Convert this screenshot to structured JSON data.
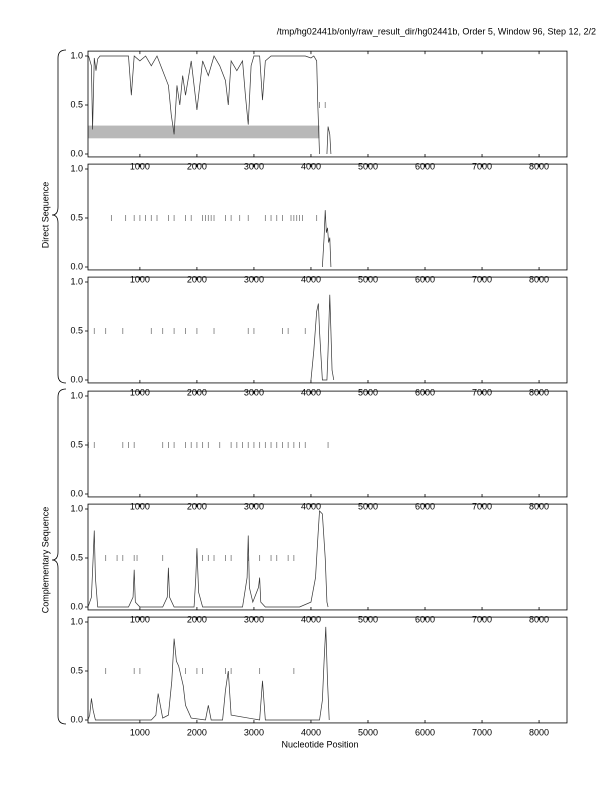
{
  "title": "/tmp/hg02441b/only/raw_result_dir/hg02441b, Order 5, Window 96, Step 12, 2/2",
  "xlabel": "Nucleotide Position",
  "group_labels": [
    "Direct Sequence",
    "Complementary Sequence"
  ],
  "chart_data": [
    {
      "type": "line",
      "xlim": [
        90,
        8490
      ],
      "ylim": [
        -0.03,
        1.05
      ],
      "xticks": [
        1000,
        2000,
        3000,
        4000,
        5000,
        6000,
        7000,
        8000
      ],
      "yticks": [
        {
          "value": 0,
          "label": "0.0"
        },
        {
          "value": 0.5,
          "label": "0.5"
        },
        {
          "value": 1,
          "label": "1.0"
        }
      ],
      "band": {
        "x": [
          90,
          4150
        ],
        "y": [
          0.16,
          0.29
        ],
        "color": "#b8b8b8"
      },
      "series": [
        {
          "color": "#333333",
          "x": [
            100,
            150,
            170,
            200,
            230,
            260,
            300,
            500,
            800,
            850,
            900,
            1000,
            1100,
            1200,
            1300,
            1400,
            1500,
            1550,
            1600,
            1650,
            1700,
            1750,
            1800,
            1900,
            2000,
            2100,
            2200,
            2300,
            2400,
            2500,
            2550,
            2600,
            2700,
            2800,
            2850,
            2900,
            2950,
            3000,
            3100,
            3150,
            3200,
            3300,
            3500,
            3700,
            3900,
            4000,
            4050,
            4100,
            4120,
            4150,
            4200,
            4250,
            4280,
            4300,
            4330,
            4350
          ],
          "values": [
            1.0,
            0.9,
            0.25,
            0.98,
            0.85,
            0.97,
            1,
            1,
            1,
            0.6,
            1,
            0.95,
            1,
            0.9,
            1,
            0.85,
            0.7,
            0.4,
            0.2,
            0.7,
            0.5,
            0.8,
            0.6,
            0.95,
            0.45,
            0.95,
            0.8,
            1,
            0.9,
            0.75,
            0.5,
            0.95,
            0.85,
            0.95,
            0.6,
            0.3,
            0.9,
            1,
            1,
            0.55,
            0.95,
            1,
            1,
            1,
            1,
            0.98,
            1,
            0.95,
            0.5,
            0,
            null,
            null,
            0,
            0.28,
            0.2,
            0
          ]
        },
        {
          "marker": "tick",
          "color": "#777777",
          "x": [
            4150,
            4250
          ],
          "values": [
            0.5,
            0.5
          ]
        }
      ]
    },
    {
      "type": "line",
      "xlim": [
        90,
        8490
      ],
      "ylim": [
        -0.03,
        1.05
      ],
      "xticks": [
        1000,
        2000,
        3000,
        4000,
        5000,
        6000,
        7000,
        8000
      ],
      "yticks": [
        {
          "value": 0,
          "label": "0.0"
        },
        {
          "value": 0.5,
          "label": "0.5"
        },
        {
          "value": 1,
          "label": "1.0"
        }
      ],
      "series": [
        {
          "color": "#333333",
          "x": [
            4200,
            4230,
            4250,
            4270,
            4290,
            4310,
            4330,
            4350
          ],
          "values": [
            0,
            0.3,
            0.58,
            0.35,
            0.4,
            0.25,
            0.3,
            0
          ]
        },
        {
          "marker": "tick",
          "color": "#777777",
          "x": [
            500,
            750,
            900,
            1000,
            1100,
            1200,
            1300,
            1500,
            1600,
            1800,
            1900,
            2100,
            2150,
            2200,
            2250,
            2300,
            2500,
            2600,
            2750,
            2900,
            3200,
            3300,
            3400,
            3500,
            3650,
            3700,
            3750,
            3800,
            3850,
            4100
          ],
          "values": [
            0.5,
            0.5,
            0.5,
            0.5,
            0.5,
            0.5,
            0.5,
            0.5,
            0.5,
            0.5,
            0.5,
            0.5,
            0.5,
            0.5,
            0.5,
            0.5,
            0.5,
            0.5,
            0.5,
            0.5,
            0.5,
            0.5,
            0.5,
            0.5,
            0.5,
            0.5,
            0.5,
            0.5,
            0.5,
            0.5
          ]
        }
      ]
    },
    {
      "type": "line",
      "xlim": [
        90,
        8490
      ],
      "ylim": [
        -0.03,
        1.05
      ],
      "xticks": [
        1000,
        2000,
        3000,
        4000,
        5000,
        6000,
        7000,
        8000
      ],
      "yticks": [
        {
          "value": 0,
          "label": "0.0"
        },
        {
          "value": 0.5,
          "label": "0.5"
        },
        {
          "value": 1,
          "label": "1.0"
        }
      ],
      "series": [
        {
          "color": "#333333",
          "x": [
            4000,
            4050,
            4100,
            4130,
            4150,
            4180,
            4200,
            4280,
            4300,
            4330,
            4350,
            4370,
            4400
          ],
          "values": [
            0,
            0.3,
            0.7,
            0.78,
            0.5,
            0.2,
            0,
            0,
            0.3,
            0.87,
            0.5,
            0.1,
            0
          ]
        },
        {
          "marker": "tick",
          "color": "#777777",
          "x": [
            200,
            400,
            700,
            1200,
            1400,
            1600,
            1800,
            2000,
            2300,
            2900,
            3000,
            3500,
            3600,
            3900
          ],
          "values": [
            0.5,
            0.5,
            0.5,
            0.5,
            0.5,
            0.5,
            0.5,
            0.5,
            0.5,
            0.5,
            0.5,
            0.5,
            0.5,
            0.5
          ]
        }
      ]
    },
    {
      "type": "line",
      "xlim": [
        90,
        8490
      ],
      "ylim": [
        -0.03,
        1.05
      ],
      "xticks": [
        1000,
        2000,
        3000,
        4000,
        5000,
        6000,
        7000,
        8000
      ],
      "yticks": [
        {
          "value": 0,
          "label": "0.0"
        },
        {
          "value": 0.5,
          "label": "0.5"
        },
        {
          "value": 1,
          "label": "1.0"
        }
      ],
      "series": [
        {
          "marker": "tick",
          "color": "#777777",
          "x": [
            100,
            200,
            700,
            800,
            900,
            1400,
            1500,
            1600,
            1800,
            1900,
            2000,
            2100,
            2200,
            2400,
            2600,
            2700,
            2800,
            2900,
            3000,
            3100,
            3200,
            3300,
            3400,
            3500,
            3600,
            3700,
            3800,
            3900,
            4300
          ],
          "values": [
            0.5,
            0.5,
            0.5,
            0.5,
            0.5,
            0.5,
            0.5,
            0.5,
            0.5,
            0.5,
            0.5,
            0.5,
            0.5,
            0.5,
            0.5,
            0.5,
            0.5,
            0.5,
            0.5,
            0.5,
            0.5,
            0.5,
            0.5,
            0.5,
            0.5,
            0.5,
            0.5,
            0.5,
            0.5
          ]
        }
      ]
    },
    {
      "type": "line",
      "xlim": [
        90,
        8490
      ],
      "ylim": [
        -0.03,
        1.05
      ],
      "xticks": [
        1000,
        2000,
        3000,
        4000,
        5000,
        6000,
        7000,
        8000
      ],
      "yticks": [
        {
          "value": 0,
          "label": "0.0"
        },
        {
          "value": 0.5,
          "label": "0.5"
        },
        {
          "value": 1,
          "label": "1.0"
        }
      ],
      "series": [
        {
          "color": "#333333",
          "x": [
            90,
            150,
            180,
            200,
            220,
            260,
            400,
            800,
            880,
            900,
            920,
            1000,
            1400,
            1480,
            1500,
            1520,
            1600,
            1950,
            1980,
            2000,
            2030,
            2100,
            2800,
            2880,
            2900,
            2920,
            2980,
            3080,
            3100,
            3120,
            3200,
            3800,
            4000,
            4080,
            4120,
            4150,
            4200,
            4250,
            4280,
            4300
          ],
          "values": [
            0,
            0.1,
            0.5,
            0.78,
            0.3,
            0,
            0,
            0,
            0.1,
            0.38,
            0.05,
            0,
            0,
            0.1,
            0.4,
            0.1,
            0,
            0,
            0.3,
            0.6,
            0.15,
            0,
            0,
            0.3,
            0.73,
            0.2,
            0.05,
            0.2,
            0.3,
            0.05,
            0,
            0,
            0.05,
            0.3,
            0.7,
            0.98,
            0.95,
            0.5,
            0.05,
            0
          ]
        },
        {
          "marker": "tick",
          "color": "#777777",
          "x": [
            400,
            600,
            700,
            900,
            950,
            1400,
            2100,
            2200,
            2300,
            2500,
            2600,
            2900,
            3100,
            3300,
            3400,
            3600,
            3700
          ],
          "values": [
            0.5,
            0.5,
            0.5,
            0.5,
            0.5,
            0.5,
            0.5,
            0.5,
            0.5,
            0.5,
            0.5,
            0.5,
            0.5,
            0.5,
            0.5,
            0.5,
            0.5
          ]
        }
      ]
    },
    {
      "type": "line",
      "xlim": [
        90,
        8490
      ],
      "ylim": [
        -0.03,
        1.05
      ],
      "xticks": [
        1000,
        2000,
        3000,
        4000,
        5000,
        6000,
        7000,
        8000
      ],
      "yticks": [
        {
          "value": 0,
          "label": "0.0"
        },
        {
          "value": 0.5,
          "label": "0.5"
        },
        {
          "value": 1,
          "label": "1.0"
        }
      ],
      "series": [
        {
          "color": "#333333",
          "x": [
            90,
            120,
            150,
            180,
            220,
            1200,
            1280,
            1320,
            1400,
            1500,
            1560,
            1600,
            1640,
            1680,
            1720,
            1760,
            1800,
            1900,
            2150,
            2200,
            2250,
            2450,
            2500,
            2550,
            2600,
            3100,
            3150,
            3200,
            4150,
            4200,
            4230,
            4260,
            4290,
            4320
          ],
          "values": [
            0,
            0.05,
            0.22,
            0.1,
            0,
            0,
            0.05,
            0.27,
            0.02,
            0.05,
            0.4,
            0.83,
            0.6,
            0.55,
            0.45,
            0.35,
            0.15,
            0.02,
            0,
            0.15,
            0,
            0,
            0.3,
            0.5,
            0.05,
            0,
            0.4,
            0,
            0,
            0.2,
            0.6,
            0.95,
            0.4,
            0
          ]
        },
        {
          "marker": "tick",
          "color": "#777777",
          "x": [
            400,
            900,
            1000,
            1800,
            2000,
            2100,
            2500,
            2600,
            3100,
            3700
          ],
          "values": [
            0.5,
            0.5,
            0.5,
            0.5,
            0.5,
            0.5,
            0.5,
            0.5,
            0.5,
            0.5
          ]
        }
      ]
    }
  ]
}
